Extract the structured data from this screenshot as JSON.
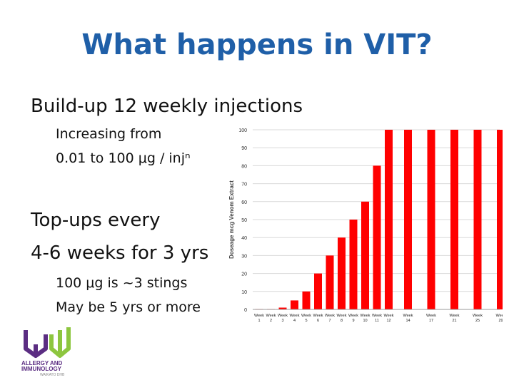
{
  "slide": {
    "title": "What happens in VIT?",
    "bullets": {
      "buildup": "Build-up 12 weekly injections",
      "increase_line1": "Increasing from",
      "increase_line2": "0.01 to 100 μg / injⁿ",
      "topups_line1": "Top-ups every",
      "topups_line2": "4-6 weeks for 3 yrs",
      "stings": "100 μg is ~3 stings",
      "duration": "May be 5 yrs or more"
    }
  },
  "logo": {
    "line1": "ALLERGY AND",
    "line2": "IMMUNOLOGY",
    "line3": "WAIKATO DHB",
    "colors": {
      "purple": "#5b2d82",
      "green": "#8dc63f"
    }
  },
  "chart_data": {
    "type": "bar",
    "title": "",
    "ylabel": "Doseage mcg Venom Extract",
    "xlabel": "",
    "ylim": [
      0,
      100
    ],
    "yticks": [
      0,
      10,
      20,
      30,
      40,
      50,
      60,
      70,
      80,
      90,
      100
    ],
    "grid": true,
    "bar_color": "#ff0000",
    "x_prefix": "Week",
    "categories": [
      "1",
      "2",
      "3",
      "4",
      "5",
      "6",
      "7",
      "8",
      "9",
      "10",
      "11",
      "12",
      "14",
      "17",
      "21",
      "25",
      "29"
    ],
    "values": [
      0.01,
      0.1,
      1,
      5,
      10,
      20,
      30,
      40,
      50,
      60,
      80,
      100,
      100,
      100,
      100,
      100,
      100
    ]
  }
}
